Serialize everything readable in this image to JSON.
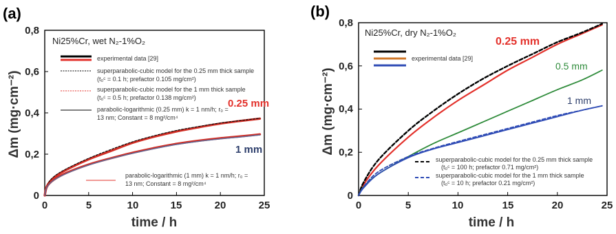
{
  "chart_data": [
    {
      "panel": "(a)",
      "type": "line",
      "title": "Ni25%Cr, wet N₂-1%O₂",
      "xlabel": "time / h",
      "ylabel": "Δm (mg·cm⁻²)",
      "xlim": [
        0,
        25
      ],
      "ylim": [
        0,
        0.8
      ],
      "xticks": [
        "0",
        "5",
        "10",
        "15",
        "20",
        "25"
      ],
      "yticks": [
        "0",
        "0,2",
        "0,4",
        "0,6",
        "0,8"
      ],
      "annotations": [
        "0.25 mm",
        "1 mm"
      ],
      "legend": [
        "experimental data [29]",
        "superparabolic-cubic model for the 0.25 mm thick sample",
        "(t₀ᶜ = 0.1 h; prefactor 0.105 mg/cm²)",
        "superparabolic-cubic model for the 1 mm thick sample",
        "(t₀ᶜ = 0.5 h; prefactor 0.138 mg/cm²)",
        "parabolic-logarithmic (0.25 mm) k = 1 nm/h; r₀ =",
        "13 nm; Constant = 8 mg²/cm⁴",
        "parabolic-logarithmic (1 mm) k = 1 nm/h; r₀ =",
        "13 nm; Constant = 8 mg²/cm⁴"
      ],
      "series": [
        {
          "color": "#d12e25",
          "x": [
            0,
            0.25,
            1,
            2.5,
            5,
            7.5,
            10,
            12.5,
            15,
            17.5,
            20,
            22.5,
            24.5
          ],
          "values": [
            0,
            0.045,
            0.085,
            0.125,
            0.175,
            0.215,
            0.255,
            0.285,
            0.31,
            0.33,
            0.348,
            0.362,
            0.372
          ]
        },
        {
          "color": "#000000",
          "x": [
            0,
            0.25,
            1,
            2.5,
            5,
            7.5,
            10,
            12.5,
            15,
            17.5,
            20,
            22.5,
            24.5
          ],
          "values": [
            0,
            0.048,
            0.09,
            0.13,
            0.18,
            0.222,
            0.26,
            0.29,
            0.315,
            0.334,
            0.351,
            0.364,
            0.374
          ]
        },
        {
          "color": "#d12e25",
          "x": [
            0,
            0.25,
            1,
            2.5,
            5,
            7.5,
            10,
            12.5,
            15,
            17.5,
            20,
            22.5,
            24.5
          ],
          "values": [
            0,
            0.042,
            0.075,
            0.11,
            0.15,
            0.18,
            0.207,
            0.23,
            0.25,
            0.265,
            0.277,
            0.287,
            0.296
          ]
        },
        {
          "color": "#5a6a9a",
          "x": [
            0,
            0.25,
            1,
            2.5,
            5,
            7.5,
            10,
            12.5,
            15,
            17.5,
            20,
            22.5,
            24.5
          ],
          "values": [
            0,
            0.04,
            0.073,
            0.107,
            0.147,
            0.178,
            0.204,
            0.227,
            0.247,
            0.262,
            0.274,
            0.284,
            0.293
          ]
        }
      ]
    },
    {
      "panel": "(b)",
      "type": "line",
      "title": "Ni25%Cr, dry N₂-1%O₂",
      "xlabel": "time / h",
      "ylabel": "Δm (mg·cm⁻²)",
      "xlim": [
        0,
        25
      ],
      "ylim": [
        0,
        0.8
      ],
      "xticks": [
        "0",
        "5",
        "10",
        "15",
        "20",
        "25"
      ],
      "yticks": [
        "0",
        "0,2",
        "0,4",
        "0,6",
        "0,8"
      ],
      "annotations": [
        "0.25 mm",
        "0.5 mm",
        "1 mm"
      ],
      "legend": [
        "experimental data [29]",
        "superparabolic-cubic model for the 0.25 mm thick sample",
        "(t₀ᶜ = 100 h; prefactor 0.71 mg/cm²)",
        "superparabolic-cubic model for the 1 mm thick sample",
        "(t₀ᶜ = 10 h; prefactor 0.21 mg/cm²)"
      ],
      "series": [
        {
          "name": "0.25 mm",
          "color": "#e3312b",
          "x": [
            0,
            0.5,
            2,
            5,
            7.5,
            10,
            12.5,
            15,
            17.5,
            20,
            22.5,
            24.5
          ],
          "values": [
            0,
            0.05,
            0.14,
            0.27,
            0.36,
            0.44,
            0.51,
            0.58,
            0.64,
            0.7,
            0.75,
            0.79
          ]
        },
        {
          "color": "#000000",
          "dash": true,
          "x": [
            0,
            0.5,
            2,
            5,
            7.5,
            10,
            12.5,
            15,
            17.5,
            20,
            22.5,
            24.5
          ],
          "values": [
            0,
            0.06,
            0.165,
            0.3,
            0.39,
            0.47,
            0.54,
            0.6,
            0.655,
            0.71,
            0.755,
            0.795
          ]
        },
        {
          "name": "0.5 mm",
          "color": "#2e8b3a",
          "x": [
            0,
            0.5,
            2,
            5,
            7.5,
            10,
            12.5,
            15,
            17.5,
            20,
            22.5,
            24.5
          ],
          "values": [
            0,
            0.04,
            0.1,
            0.18,
            0.24,
            0.29,
            0.34,
            0.39,
            0.44,
            0.49,
            0.535,
            0.58
          ]
        },
        {
          "name": "1 mm",
          "color": "#2e4bb5",
          "x": [
            0,
            0.5,
            2,
            5,
            7.5,
            10,
            12.5,
            15,
            17.5,
            20,
            22.5,
            24.5
          ],
          "values": [
            0,
            0.035,
            0.1,
            0.175,
            0.215,
            0.245,
            0.275,
            0.305,
            0.335,
            0.365,
            0.395,
            0.415
          ]
        },
        {
          "color": "#2e4bb5",
          "dash": true,
          "x": [
            0,
            0.5,
            2,
            5,
            7.5,
            10,
            12.5,
            15,
            17.5,
            20,
            22.5,
            24.5
          ],
          "values": [
            0,
            0.04,
            0.11,
            0.18,
            0.218,
            0.25,
            0.28,
            0.31,
            0.34,
            0.37,
            0.395,
            0.415
          ]
        }
      ]
    }
  ]
}
